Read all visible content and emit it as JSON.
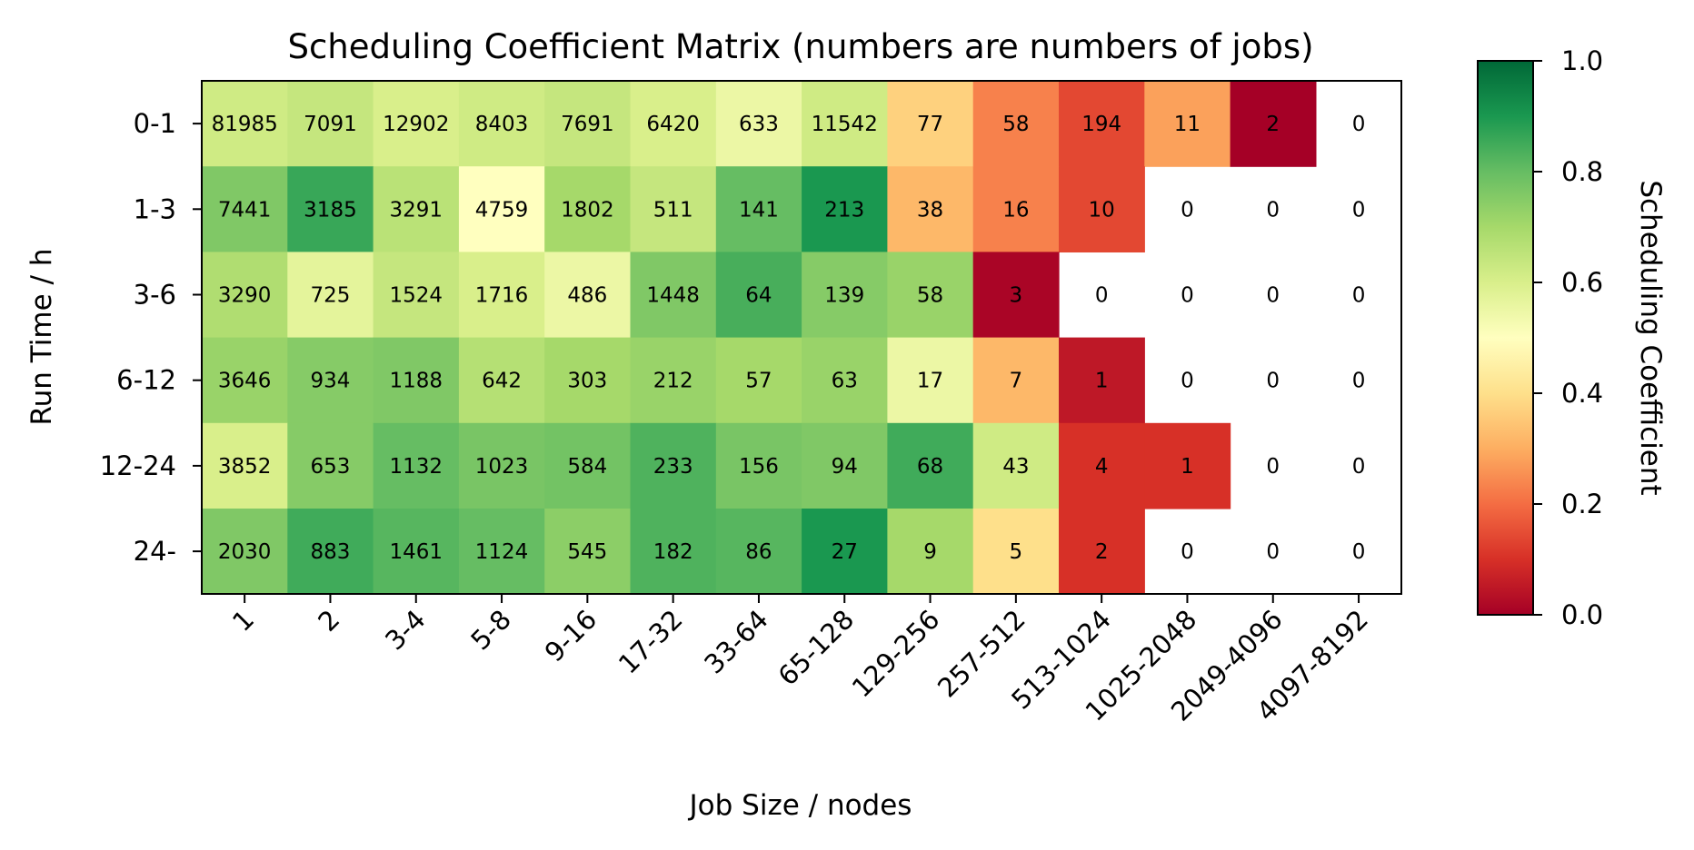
{
  "chart_data": {
    "type": "heatmap",
    "title": "Scheduling Coefficient Matrix (numbers are numbers of jobs)",
    "xlabel": "Job Size / nodes",
    "ylabel": "Run Time / h",
    "x_categories": [
      "1",
      "2",
      "3-4",
      "5-8",
      "9-16",
      "17-32",
      "33-64",
      "65-128",
      "129-256",
      "257-512",
      "513-1024",
      "1025-2048",
      "2049-4096",
      "4097-8192"
    ],
    "y_categories": [
      "0-1",
      "1-3",
      "3-6",
      "6-12",
      "12-24",
      "24-"
    ],
    "counts": [
      [
        81985,
        7091,
        12902,
        8403,
        7691,
        6420,
        633,
        11542,
        77,
        58,
        194,
        11,
        2,
        0
      ],
      [
        7441,
        3185,
        3291,
        4759,
        1802,
        511,
        141,
        213,
        38,
        16,
        10,
        0,
        0,
        0
      ],
      [
        3290,
        725,
        1524,
        1716,
        486,
        1448,
        64,
        139,
        58,
        3,
        0,
        0,
        0,
        0
      ],
      [
        3646,
        934,
        1188,
        642,
        303,
        212,
        57,
        63,
        17,
        7,
        1,
        0,
        0,
        0
      ],
      [
        3852,
        653,
        1132,
        1023,
        584,
        233,
        156,
        94,
        68,
        43,
        4,
        1,
        0,
        0
      ],
      [
        2030,
        883,
        1461,
        1124,
        545,
        182,
        86,
        27,
        9,
        5,
        2,
        0,
        0,
        0
      ]
    ],
    "coefficients": [
      [
        0.62,
        0.64,
        0.6,
        0.62,
        0.64,
        0.6,
        0.55,
        0.62,
        0.37,
        0.23,
        0.14,
        0.28,
        0.0,
        null
      ],
      [
        0.76,
        0.86,
        0.66,
        0.5,
        0.7,
        0.64,
        0.8,
        0.9,
        0.32,
        0.23,
        0.14,
        null,
        null,
        null
      ],
      [
        0.68,
        0.57,
        0.64,
        0.6,
        0.55,
        0.76,
        0.84,
        0.75,
        0.72,
        0.01,
        null,
        null,
        null,
        null
      ],
      [
        0.72,
        0.75,
        0.76,
        0.67,
        0.7,
        0.72,
        0.7,
        0.72,
        0.55,
        0.32,
        0.05,
        null,
        null,
        null
      ],
      [
        0.6,
        0.75,
        0.8,
        0.77,
        0.78,
        0.83,
        0.77,
        0.76,
        0.85,
        0.62,
        0.1,
        0.1,
        null,
        null
      ],
      [
        0.76,
        0.85,
        0.82,
        0.8,
        0.74,
        0.83,
        0.82,
        0.9,
        0.7,
        0.4,
        0.1,
        null,
        null,
        null
      ]
    ],
    "colorbar": {
      "label": "Scheduling Coefficient",
      "colormap": "RdYlGn",
      "range": [
        0.0,
        1.0
      ],
      "ticks": [
        "0.0",
        "0.2",
        "0.4",
        "0.6",
        "0.8",
        "1.0"
      ]
    }
  }
}
